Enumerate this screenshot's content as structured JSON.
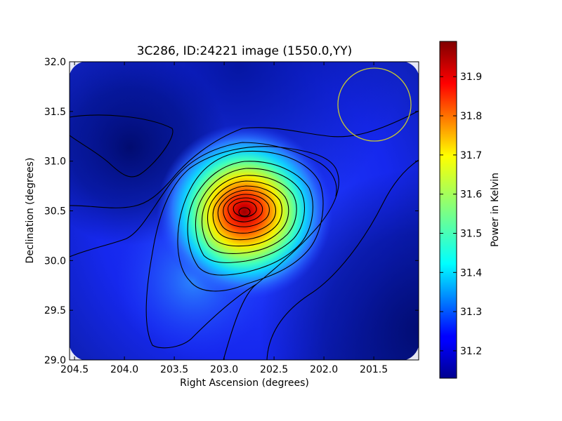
{
  "chart_data": {
    "type": "heatmap",
    "title": "3C286, ID:24221 image (1550.0,YY)",
    "xlabel": "Right Ascension (degrees)",
    "ylabel": "Declination (degrees)",
    "colorbar_label": "Power in Kelvin",
    "colormap": "jet",
    "xlim": [
      204.55,
      201.05
    ],
    "ylim": [
      29.0,
      32.0
    ],
    "x_ticks": [
      204.5,
      204.0,
      203.5,
      203.0,
      202.5,
      202.0,
      201.5
    ],
    "x_tick_labels": [
      "204.5",
      "204.0",
      "203.5",
      "203.0",
      "202.5",
      "202.0",
      "201.5"
    ],
    "y_ticks": [
      29.0,
      29.5,
      30.0,
      30.5,
      31.0,
      31.5,
      32.0
    ],
    "y_tick_labels": [
      "29.0",
      "29.5",
      "30.0",
      "30.5",
      "31.0",
      "31.5",
      "32.0"
    ],
    "color_range": [
      31.13,
      31.99
    ],
    "colorbar_ticks": [
      31.2,
      31.3,
      31.4,
      31.5,
      31.6,
      31.7,
      31.8,
      31.9
    ],
    "colorbar_tick_labels": [
      "31.2",
      "31.3",
      "31.4",
      "31.5",
      "31.6",
      "31.7",
      "31.8",
      "31.9"
    ],
    "peak": {
      "x": 202.77,
      "y": 30.49,
      "value": 31.99
    },
    "contours": {
      "present": true,
      "color": "#000000"
    },
    "beam_circle": {
      "present": true,
      "color": "#c8c832",
      "center": [
        201.47,
        31.57
      ],
      "radius": 0.37
    },
    "grid": false,
    "legend": "none"
  }
}
